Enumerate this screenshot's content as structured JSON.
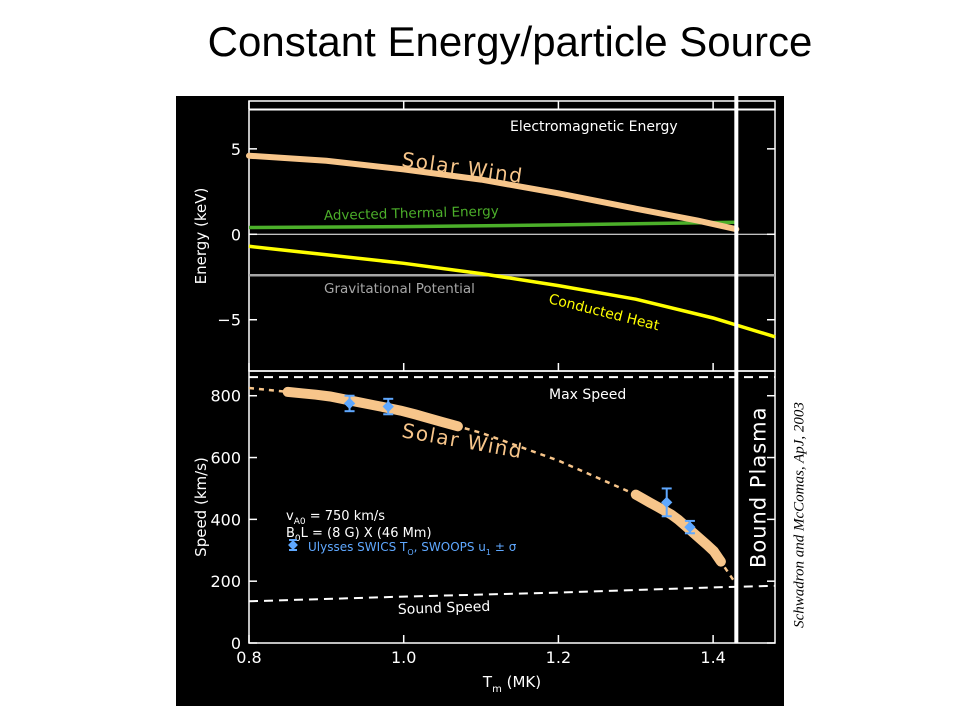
{
  "slide": {
    "title": "Constant Energy/particle Source",
    "citation": "Schwadron and McComas, ApJ, 2003"
  },
  "colors": {
    "background": "#000000",
    "axes": "#ffffff",
    "solar_wind": "#f7c58a",
    "thermal": "#4caf2a",
    "conducted": "#ffff00",
    "gravitational": "#a6a6a6",
    "ulysses": "#5fa8ff"
  },
  "chart_data": [
    {
      "type": "line",
      "ylabel": "Energy (keV)",
      "xlim": [
        0.8,
        1.48
      ],
      "ylim": [
        -8,
        7.8
      ],
      "yticks": [
        5,
        0,
        -5
      ],
      "ytick_labels": [
        "5",
        "0",
        "−5"
      ],
      "series": [
        {
          "name": "Electromagnetic Energy",
          "x": [
            0.8,
            1.48
          ],
          "y": [
            7.3,
            7.3
          ]
        },
        {
          "name": "Solar Wind",
          "x": [
            0.8,
            0.9,
            1.0,
            1.1,
            1.2,
            1.3,
            1.38,
            1.43
          ],
          "y": [
            4.6,
            4.3,
            3.8,
            3.2,
            2.4,
            1.5,
            0.8,
            0.3
          ]
        },
        {
          "name": "Advected Thermal Energy",
          "x": [
            0.8,
            1.0,
            1.2,
            1.43
          ],
          "y": [
            0.4,
            0.45,
            0.55,
            0.7
          ]
        },
        {
          "name": "Gravitational Potential",
          "x": [
            0.8,
            1.48
          ],
          "y": [
            -2.4,
            -2.4
          ]
        },
        {
          "name": "Conducted Heat",
          "x": [
            0.8,
            0.9,
            1.0,
            1.1,
            1.2,
            1.3,
            1.4,
            1.48
          ],
          "y": [
            -0.7,
            -1.2,
            -1.7,
            -2.3,
            -3.0,
            -3.8,
            -4.9,
            -6.0
          ]
        }
      ],
      "annotations": {
        "electromagnetic": "Electromagnetic Energy",
        "solar_wind": "Solar Wind",
        "thermal": "Advected Thermal Energy",
        "gravitational": "Gravitational Potential",
        "conducted": "Conducted Heat"
      },
      "vertical_line": {
        "x": 1.43,
        "label": "Bound Plasma"
      }
    },
    {
      "type": "line",
      "xlabel": "T",
      "xlabel_sub": "m",
      "xlabel_unit": " (MK)",
      "ylabel": "Speed (km/s)",
      "xlim": [
        0.8,
        1.48
      ],
      "ylim": [
        0,
        880
      ],
      "xticks": [
        0.8,
        1.0,
        1.2,
        1.4
      ],
      "xtick_labels": [
        "0.8",
        "1.0",
        "1.2",
        "1.4"
      ],
      "yticks": [
        0,
        200,
        400,
        600,
        800
      ],
      "ytick_labels": [
        "0",
        "200",
        "400",
        "600",
        "800"
      ],
      "max_speed": {
        "y": 860,
        "label": "Max Speed"
      },
      "sound_speed": {
        "x": [
          0.8,
          1.0,
          1.2,
          1.4,
          1.48
        ],
        "y": [
          135,
          150,
          163,
          180,
          185
        ],
        "label": "Sound Speed"
      },
      "solar_wind_model": {
        "x": [
          0.8,
          0.9,
          1.0,
          1.1,
          1.2,
          1.3,
          1.35,
          1.4,
          1.43
        ],
        "y": [
          825,
          800,
          750,
          680,
          590,
          480,
          410,
          300,
          190
        ]
      },
      "solar_wind_bands": [
        {
          "x_start": 0.85,
          "x_end": 1.07
        },
        {
          "x_start": 1.3,
          "x_end": 1.41
        }
      ],
      "solar_wind_label": "Solar Wind",
      "ulysses_points": [
        {
          "x": 0.93,
          "y": 775,
          "err": 25
        },
        {
          "x": 0.98,
          "y": 765,
          "err": 25
        },
        {
          "x": 1.34,
          "y": 455,
          "err": 45
        },
        {
          "x": 1.37,
          "y": 375,
          "err": 20
        }
      ],
      "legend": {
        "line1": "v",
        "line1_sub": "A0",
        "line1_rest": " = 750 km/s",
        "line2": "B",
        "line2_sub": "0",
        "line2_rest": "L = (8 G) X (46 Mm)",
        "line3": "Ulysses SWICS T",
        "line3_sub": "O",
        "line3_mid": ", SWOOPS u",
        "line3_sub2": "1",
        "line3_rest": " ± σ"
      }
    }
  ]
}
